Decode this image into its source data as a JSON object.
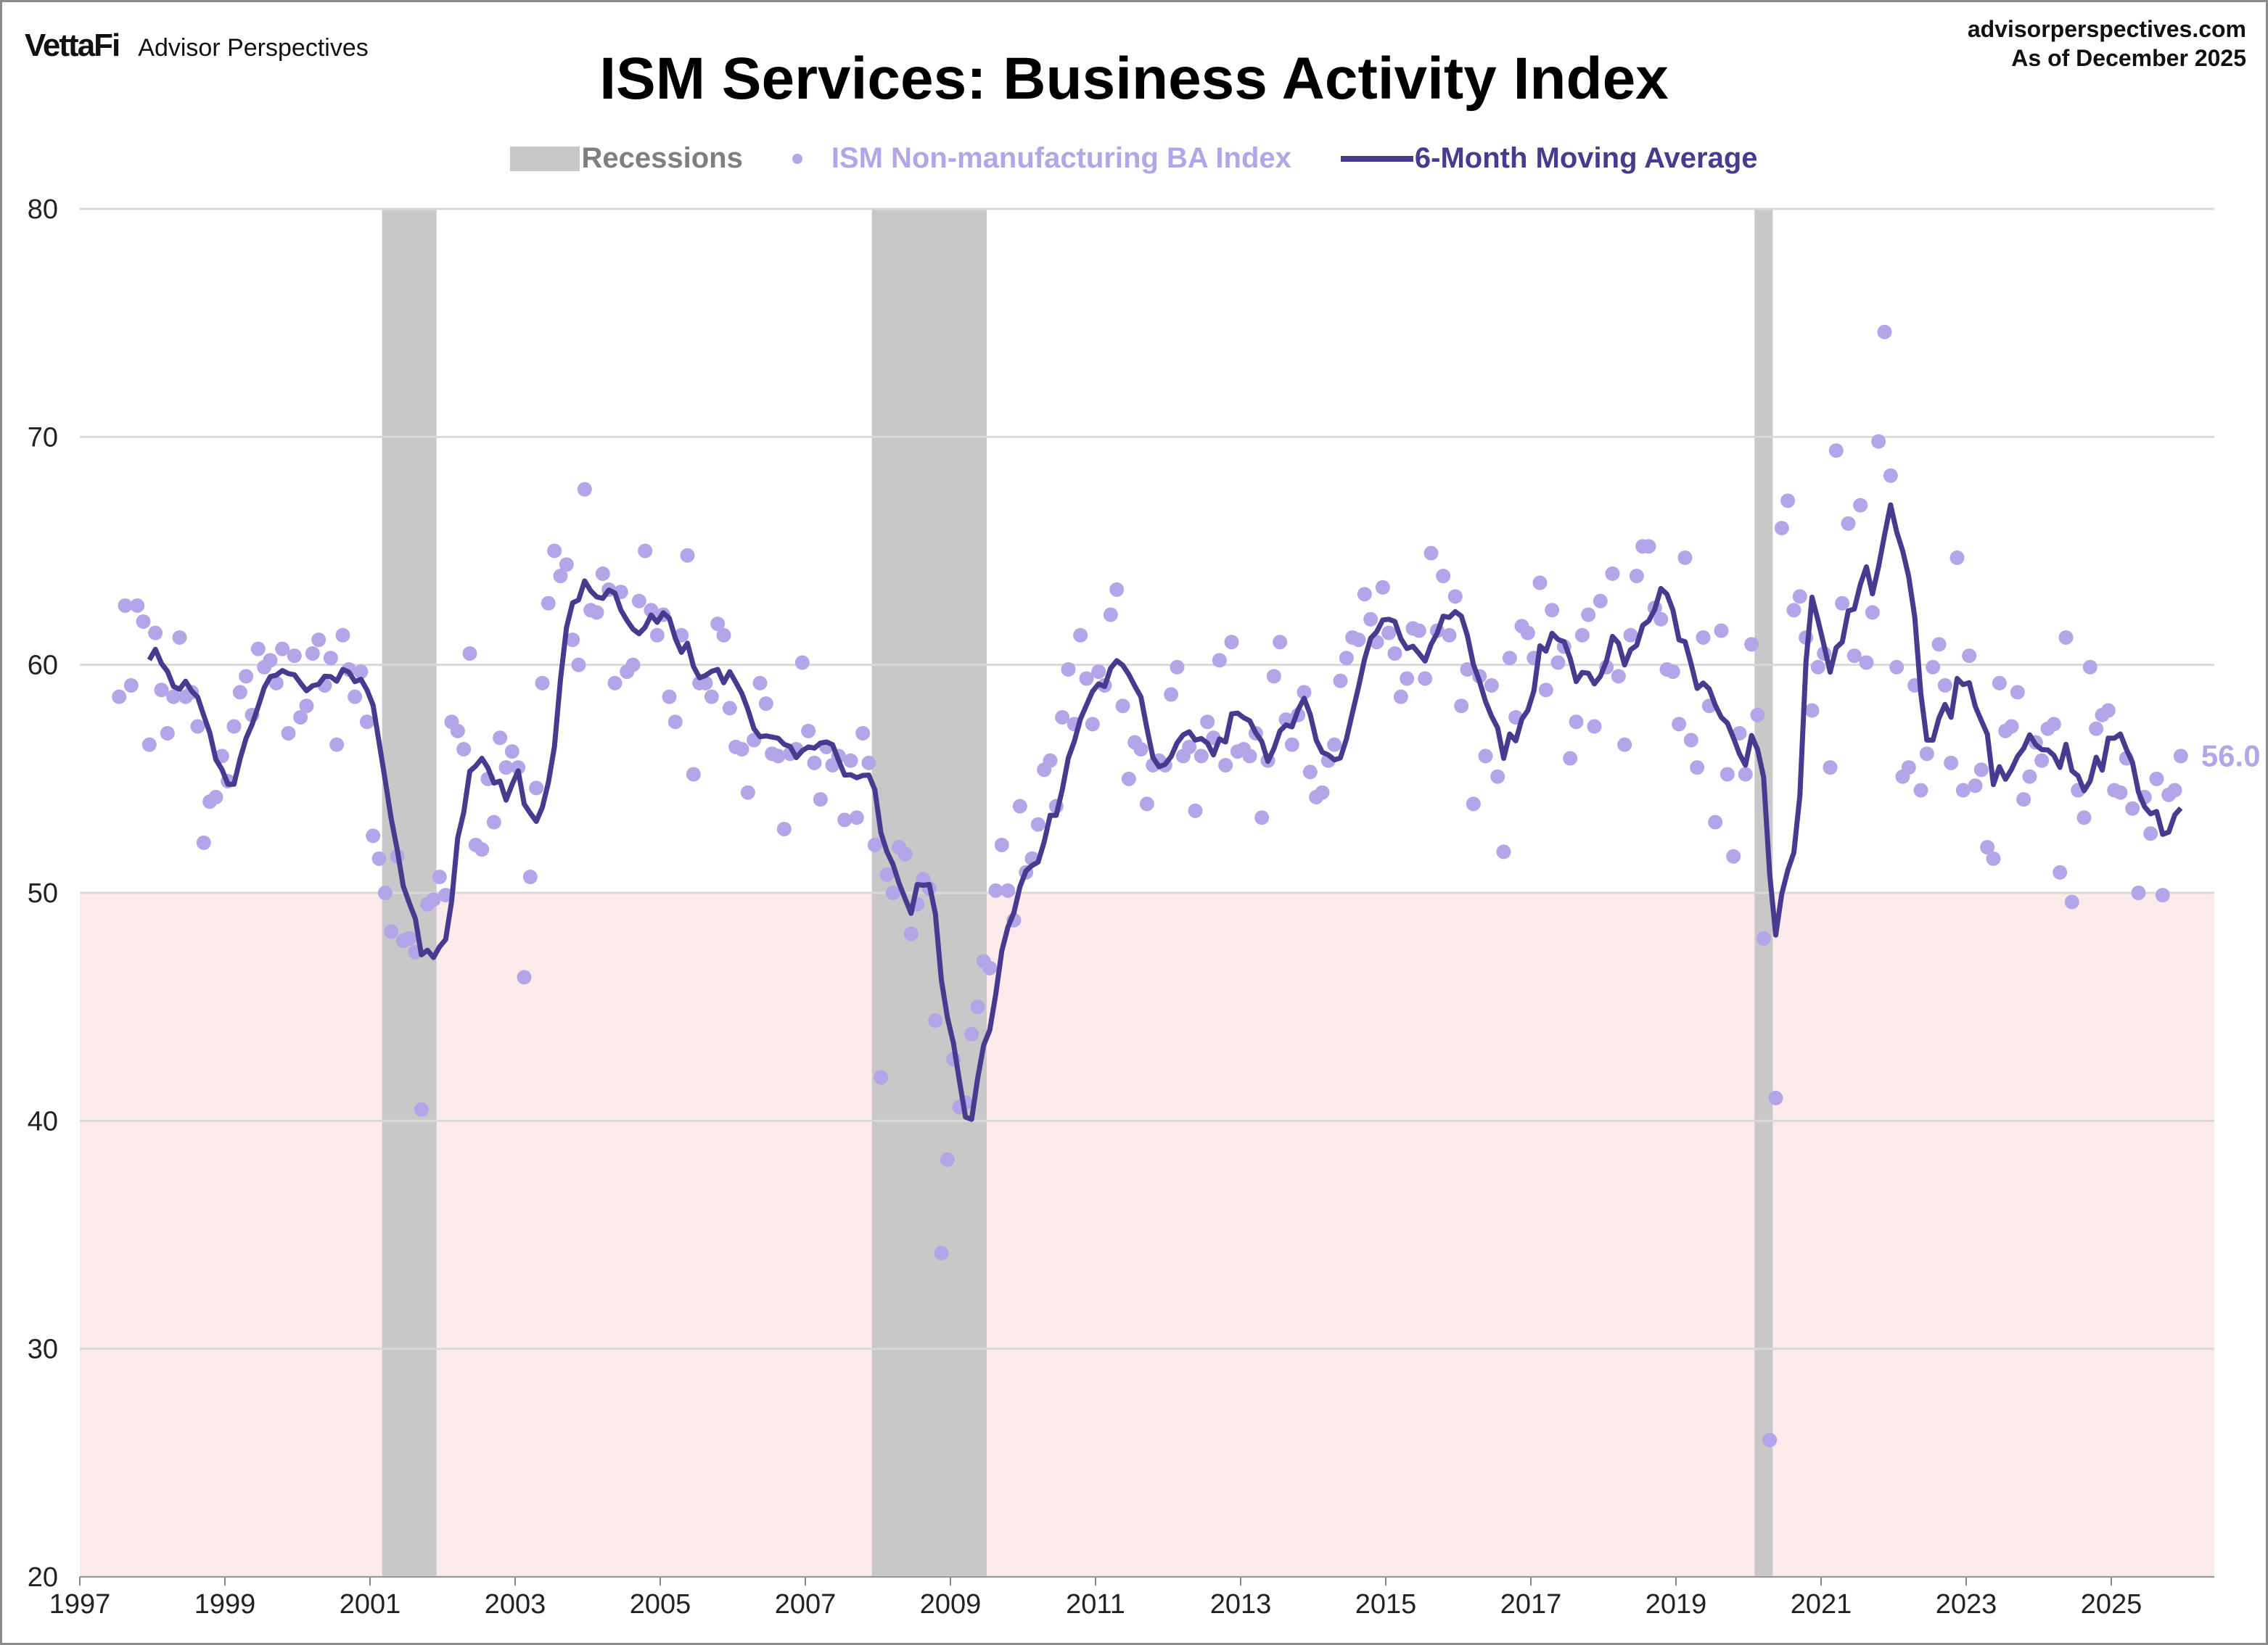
{
  "header": {
    "logo_brand": "VettaFi",
    "logo_sub": "Advisor Perspectives",
    "source_url": "advisorperspectives.com",
    "as_of": "As of December 2025"
  },
  "chart_data": {
    "type": "scatter",
    "title": "ISM Services: Business Activity Index",
    "legend": [
      "Recessions",
      "ISM Non-manufacturing BA Index",
      "6-Month Moving Average"
    ],
    "legend_placement": "top",
    "colors": {
      "recession": "#c8c8c8",
      "index": "#b3a5e8",
      "moving_average": "#483a8e",
      "contraction_zone": "#fdeaea",
      "grid": "#d9d9d9"
    },
    "xlabel": "",
    "ylabel": "",
    "xlim": [
      1997,
      2026.42
    ],
    "ylim": [
      20,
      80
    ],
    "x_ticks": [
      "1997",
      "1999",
      "2001",
      "2003",
      "2005",
      "2007",
      "2009",
      "2011",
      "2013",
      "2015",
      "2017",
      "2019",
      "2021",
      "2023",
      "2025"
    ],
    "y_ticks": [
      "20",
      "30",
      "40",
      "50",
      "60",
      "70",
      "80"
    ],
    "grid": "horizontal",
    "contraction_shading_below": 50,
    "moving_average_window": 6,
    "last_value_label": "56.0",
    "recessions": [
      [
        "2001-03",
        "2001-11"
      ],
      [
        "2007-12",
        "2009-06"
      ],
      [
        "2020-02",
        "2020-04"
      ]
    ],
    "series_start": "1997-07",
    "frequency": "monthly",
    "index_values": [
      58.6,
      62.6,
      59.1,
      62.6,
      61.9,
      56.5,
      61.4,
      58.9,
      57.0,
      58.6,
      61.2,
      58.6,
      58.8,
      57.3,
      52.2,
      54.0,
      54.2,
      56.0,
      54.9,
      57.3,
      58.8,
      59.5,
      57.8,
      60.7,
      59.9,
      60.2,
      59.2,
      60.7,
      57.0,
      60.4,
      57.7,
      58.2,
      60.5,
      61.1,
      59.1,
      60.3,
      56.5,
      61.3,
      59.8,
      58.6,
      59.7,
      57.5,
      52.5,
      51.5,
      50.0,
      48.3,
      51.6,
      47.9,
      48.0,
      47.4,
      40.5,
      49.5,
      49.7,
      50.7,
      49.9,
      57.5,
      57.1,
      56.3,
      60.5,
      52.1,
      51.9,
      55.0,
      53.1,
      56.8,
      55.5,
      56.2,
      55.5,
      46.3,
      50.7,
      54.6,
      59.2,
      62.7,
      65.0,
      63.9,
      64.4,
      61.1,
      60.0,
      67.7,
      62.4,
      62.3,
      64.0,
      63.3,
      59.2,
      63.2,
      59.7,
      60.0,
      62.8,
      65.0,
      62.4,
      61.3,
      62.2,
      58.6,
      57.5,
      61.3,
      64.8,
      55.2,
      59.2,
      59.2,
      58.6,
      61.8,
      61.3,
      58.1,
      56.4,
      56.3,
      54.4,
      56.7,
      59.2,
      58.3,
      56.1,
      56.0,
      52.8,
      56.1,
      56.3,
      60.1,
      57.1,
      55.7,
      54.1,
      56.4,
      55.6,
      56.0,
      53.2,
      55.8,
      53.3,
      57.0,
      55.7,
      52.1,
      41.9,
      50.8,
      50.0,
      52.0,
      51.7,
      48.2,
      49.5,
      50.6,
      50.2,
      44.4,
      34.2,
      38.3,
      42.7,
      40.6,
      40.8,
      43.8,
      45.0,
      47.0,
      46.7,
      50.1,
      52.1,
      50.1,
      48.8,
      53.8,
      50.9,
      51.5,
      53.0,
      55.4,
      55.8,
      53.8,
      57.7,
      59.8,
      57.4,
      61.3,
      59.4,
      57.4,
      59.7,
      59.1,
      62.2,
      63.3,
      58.2,
      55.0,
      56.6,
      56.3,
      53.9,
      55.6,
      55.8,
      55.6,
      58.7,
      59.9,
      56.0,
      56.4,
      53.6,
      56.0,
      57.5,
      56.8,
      60.2,
      55.6,
      61.0,
      56.2,
      56.3,
      56.0,
      57.0,
      53.3,
      55.8,
      59.5,
      61.0,
      57.6,
      56.5,
      57.8,
      58.8,
      55.3,
      54.2,
      54.4,
      55.8,
      56.5,
      59.3,
      60.3,
      61.2,
      61.1,
      63.1,
      62.0,
      61.0,
      63.4,
      61.4,
      60.5,
      58.6,
      59.4,
      61.6,
      61.5,
      59.4,
      64.9,
      61.5,
      63.9,
      61.3,
      63.0,
      58.2,
      59.8,
      53.9,
      59.5,
      56.0,
      59.1,
      55.1,
      51.8,
      60.3,
      57.7,
      61.7,
      61.4,
      60.3,
      63.6,
      58.9,
      62.4,
      60.1,
      60.8,
      55.9,
      57.5,
      61.3,
      62.2,
      57.3,
      62.8,
      59.9,
      64.0,
      59.5,
      56.5,
      61.3,
      63.9,
      65.2,
      65.2,
      62.5,
      62.0,
      59.8,
      59.7,
      57.4,
      64.7,
      56.7,
      55.5,
      61.2,
      58.2,
      53.1,
      61.5,
      55.2,
      51.6,
      57.0,
      55.2,
      60.9,
      57.8,
      48.0,
      26.0,
      41.0,
      66.0,
      67.2,
      62.4,
      63.0,
      61.2,
      58.0,
      59.9,
      60.5,
      55.5,
      69.4,
      62.7,
      66.2,
      60.4,
      67.0,
      60.1,
      62.3,
      69.8,
      74.6,
      68.3,
      59.9,
      55.1,
      55.5,
      59.1,
      54.5,
      56.1,
      59.9,
      60.9,
      59.1,
      55.7,
      64.7,
      54.5,
      60.4,
      54.7,
      55.4,
      52.0,
      51.5,
      59.2,
      57.1,
      57.3,
      58.8,
      54.1,
      55.1,
      56.6,
      55.8,
      57.2,
      57.4,
      50.9,
      61.2,
      49.6,
      54.5,
      53.3,
      59.9,
      57.2,
      57.8,
      58.0,
      54.5,
      54.4,
      55.9,
      53.7,
      50.0,
      54.2,
      52.6,
      55.0,
      49.9,
      54.3,
      54.5,
      56.0
    ]
  }
}
